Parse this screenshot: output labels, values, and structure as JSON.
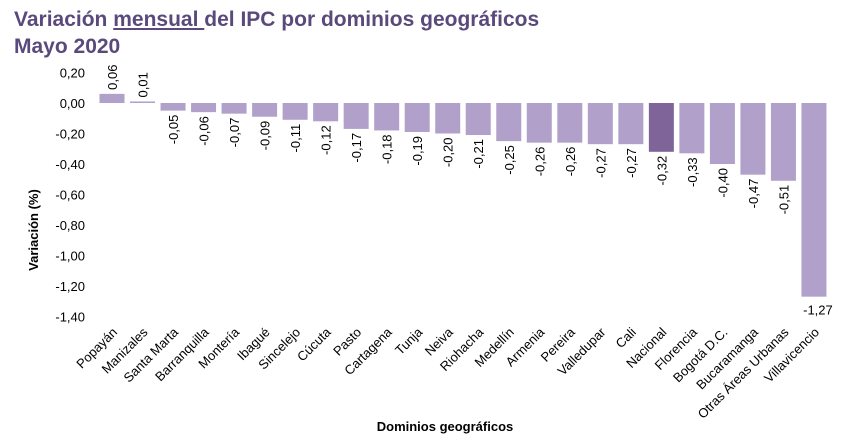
{
  "header": {
    "title_pre": "Variación ",
    "title_underlined": "mensual ",
    "title_post": "del IPC por dominios geográficos",
    "subtitle": "Mayo 2020"
  },
  "colors": {
    "bar": "#b1a1ca",
    "highlight": "#7f6499",
    "title": "#5a4a7c"
  },
  "chart_data": {
    "type": "bar",
    "title": "Variación mensual del IPC por dominios geográficos Mayo 2020",
    "xlabel": "Dominios geográficos",
    "ylabel": "Variación (%)",
    "ylim": [
      -1.4,
      0.2
    ],
    "yticks": [
      0.2,
      0.0,
      -0.2,
      -0.4,
      -0.6,
      -0.8,
      -1.0,
      -1.2,
      -1.4
    ],
    "ytick_labels": [
      "0,20",
      "0,00",
      "-0,20",
      "-0,40",
      "-0,60",
      "-0,80",
      "-1,00",
      "-1,20",
      "-1,40"
    ],
    "highlight": "Nacional",
    "categories": [
      "Popayán",
      "Manizales",
      "Santa Marta",
      "Barranquilla",
      "Montería",
      "Ibagué",
      "Sincelejo",
      "Cúcuta",
      "Pasto",
      "Cartagena",
      "Tunja",
      "Neiva",
      "Riohacha",
      "Medellín",
      "Armenia",
      "Pereira",
      "Valledupar",
      "Cali",
      "Nacional",
      "Florencia",
      "Bogotá D.C.",
      "Bucaramanga",
      "Otras Áreas Urbanas",
      "Villavicencio"
    ],
    "values": [
      0.06,
      0.01,
      -0.05,
      -0.06,
      -0.07,
      -0.09,
      -0.11,
      -0.12,
      -0.17,
      -0.18,
      -0.19,
      -0.2,
      -0.21,
      -0.25,
      -0.26,
      -0.26,
      -0.27,
      -0.27,
      -0.32,
      -0.33,
      -0.4,
      -0.47,
      -0.51,
      -1.27
    ],
    "value_labels": [
      "0,06",
      "0,01",
      "-0,05",
      "-0,06",
      "-0,07",
      "-0,09",
      "-0,11",
      "-0,12",
      "-0,17",
      "-0,18",
      "-0,19",
      "-0,20",
      "-0,21",
      "-0,25",
      "-0,26",
      "-0,26",
      "-0,27",
      "-0,27",
      "-0,32",
      "-0,33",
      "-0,40",
      "-0,47",
      "-0,51",
      "-1,27"
    ]
  }
}
